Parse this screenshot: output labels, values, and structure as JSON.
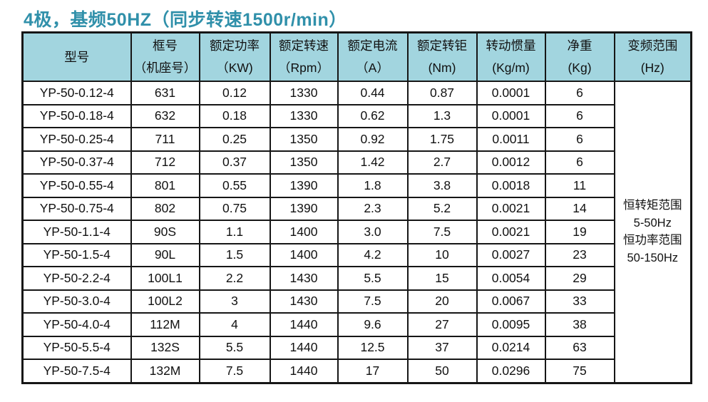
{
  "title": "4极，基频50HZ（同步转速1500r/min）",
  "colors": {
    "title": "#3090aa",
    "header_bg": "#a2d5df",
    "border": "#161616"
  },
  "table": {
    "columns": [
      {
        "lines": [
          "型号"
        ]
      },
      {
        "lines": [
          "框号",
          "（机座号）"
        ]
      },
      {
        "lines": [
          "额定功率",
          "（KW)"
        ]
      },
      {
        "lines": [
          "额定转速",
          "（Rpm）"
        ]
      },
      {
        "lines": [
          "额定电流",
          "（A）"
        ]
      },
      {
        "lines": [
          "额定转钜",
          "(Nm)"
        ]
      },
      {
        "lines": [
          "转动惯量",
          "(Kg/m)"
        ]
      },
      {
        "lines": [
          "净重",
          "(Kg)"
        ]
      },
      {
        "lines": [
          "变频范围",
          "(Hz)"
        ]
      }
    ],
    "rows": [
      [
        "YP-50-0.12-4",
        "631",
        "0.12",
        "1330",
        "0.44",
        "0.87",
        "0.0001",
        "6"
      ],
      [
        "YP-50-0.18-4",
        "632",
        "0.18",
        "1330",
        "0.62",
        "1.3",
        "0.0001",
        "6"
      ],
      [
        "YP-50-0.25-4",
        "711",
        "0.25",
        "1350",
        "0.92",
        "1.75",
        "0.0011",
        "6"
      ],
      [
        "YP-50-0.37-4",
        "712",
        "0.37",
        "1350",
        "1.42",
        "2.7",
        "0.0012",
        "6"
      ],
      [
        "YP-50-0.55-4",
        "801",
        "0.55",
        "1390",
        "1.8",
        "3.8",
        "0.0018",
        "11"
      ],
      [
        "YP-50-0.75-4",
        "802",
        "0.75",
        "1390",
        "2.3",
        "5.2",
        "0.0021",
        "14"
      ],
      [
        "YP-50-1.1-4",
        "90S",
        "1.1",
        "1400",
        "3.0",
        "7.5",
        "0.0021",
        "19"
      ],
      [
        "YP-50-1.5-4",
        "90L",
        "1.5",
        "1400",
        "4.2",
        "10",
        "0.0027",
        "23"
      ],
      [
        "YP-50-2.2-4",
        "100L1",
        "2.2",
        "1430",
        "5.5",
        "15",
        "0.0054",
        "29"
      ],
      [
        "YP-50-3.0-4",
        "100L2",
        "3",
        "1430",
        "7.5",
        "20",
        "0.0067",
        "33"
      ],
      [
        "YP-50-4.0-4",
        "112M",
        "4",
        "1440",
        "9.6",
        "27",
        "0.0095",
        "38"
      ],
      [
        "YP-50-5.5-4",
        "132S",
        "5.5",
        "1440",
        "12.5",
        "37",
        "0.0214",
        "63"
      ],
      [
        "YP-50-7.5-4",
        "132M",
        "7.5",
        "1440",
        "17",
        "50",
        "0.0296",
        "75"
      ]
    ],
    "frequency_range_lines": [
      "恒转矩范围",
      "5-50Hz",
      "恒功率范围",
      "50-150Hz"
    ]
  }
}
